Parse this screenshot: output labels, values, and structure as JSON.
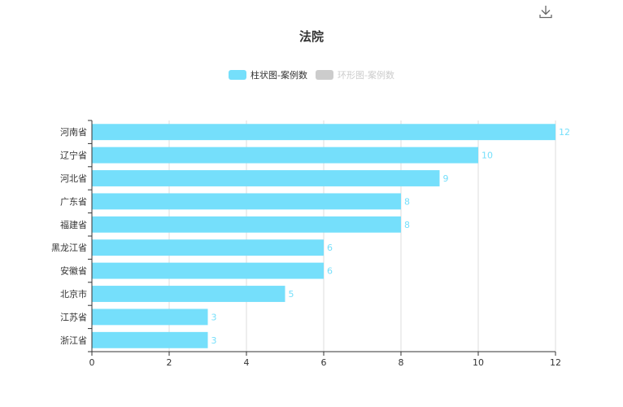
{
  "title": "法院",
  "toolbar": {
    "download_icon": "download-icon"
  },
  "legend": [
    {
      "label": "柱状图-案例数",
      "color": "#75dffb",
      "active": true
    },
    {
      "label": "环形图-案例数",
      "color": "#cccccc",
      "active": false
    }
  ],
  "colors": {
    "bar": "#75dffb",
    "label": "#75dffb",
    "axis": "#333333",
    "grid": "#dddddd",
    "tick_text": "#333333"
  },
  "chart_data": {
    "type": "bar",
    "orientation": "horizontal",
    "categories": [
      "河南省",
      "辽宁省",
      "河北省",
      "广东省",
      "福建省",
      "黑龙江省",
      "安徽省",
      "北京市",
      "江苏省",
      "浙江省"
    ],
    "series": [
      {
        "name": "柱状图-案例数",
        "values": [
          12,
          10,
          9,
          8,
          8,
          6,
          6,
          5,
          3,
          3
        ]
      }
    ],
    "xlim": [
      0,
      12
    ],
    "xticks": [
      0,
      2,
      4,
      6,
      8,
      10,
      12
    ],
    "grid": true
  }
}
